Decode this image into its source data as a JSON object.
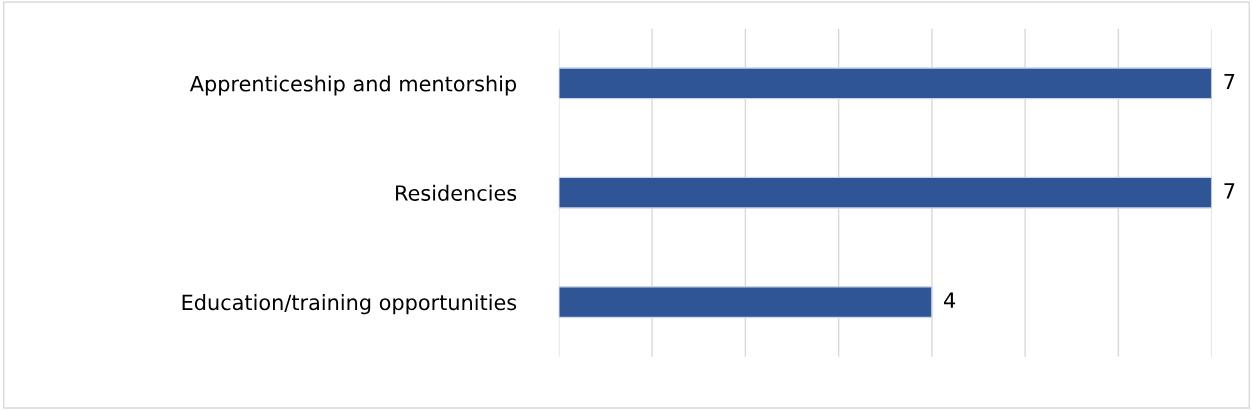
{
  "chart_data": {
    "type": "bar",
    "orientation": "horizontal",
    "categories": [
      "Apprenticeship and mentorship",
      "Residencies",
      "Education/training opportunities"
    ],
    "values": [
      7,
      7,
      4
    ],
    "color": "#2f5597",
    "xlim": [
      0,
      7
    ],
    "xticks": [
      {
        "value": 0,
        "label": null
      },
      {
        "value": 1,
        "label": null
      },
      {
        "value": 2,
        "label": null
      },
      {
        "value": 3,
        "label": null
      },
      {
        "value": 4,
        "label": null
      },
      {
        "value": 5,
        "label": null
      },
      {
        "value": 6,
        "label": null
      },
      {
        "value": 7,
        "label": null
      }
    ],
    "tick_labels": "y",
    "grid": "x",
    "data_labels": true,
    "legend": false
  }
}
